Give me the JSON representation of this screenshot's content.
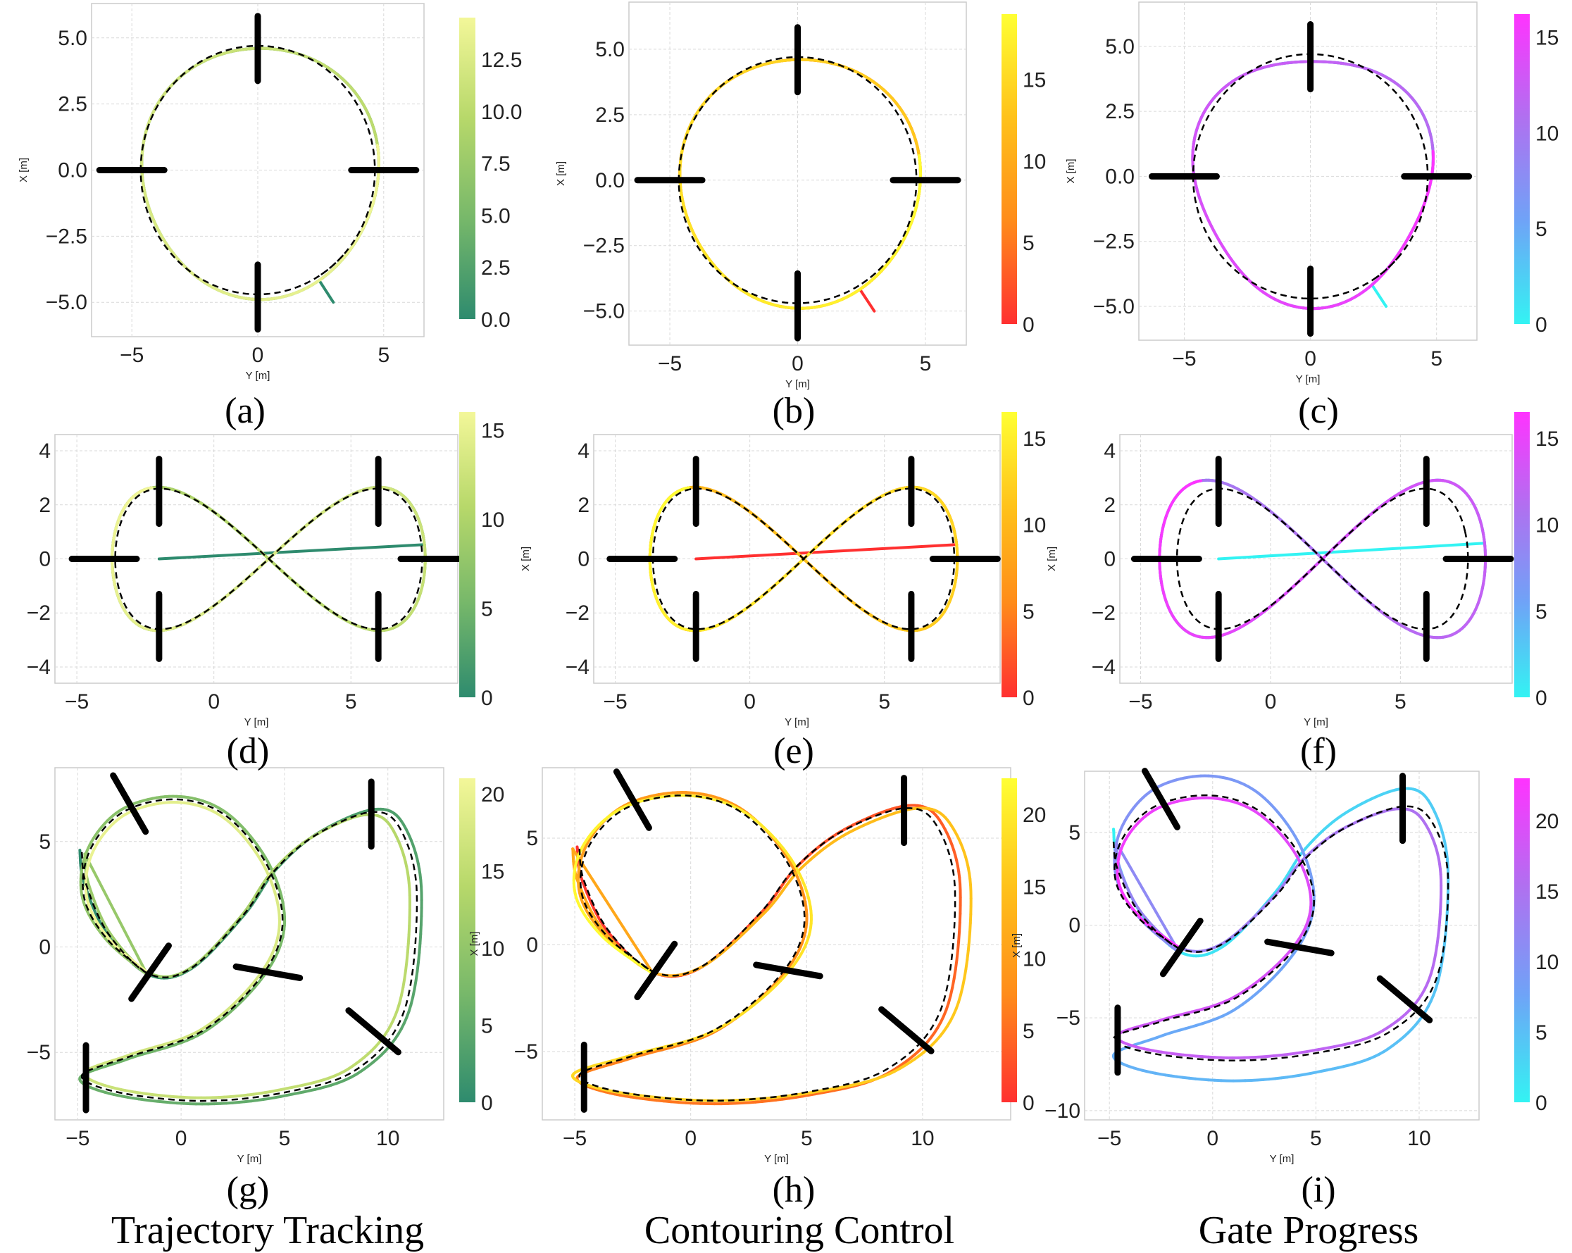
{
  "figure": {
    "column_titles": [
      "Trajectory Tracking",
      "Contouring Control",
      "Gate Progress"
    ],
    "panel_labels": [
      "(a)",
      "(b)",
      "(c)",
      "(d)",
      "(e)",
      "(f)",
      "(g)",
      "(h)",
      "(i)"
    ],
    "colormaps": {
      "summer": [
        "#2e8b6e",
        "#77b86a",
        "#b7d86a",
        "#f3f799"
      ],
      "autumn": [
        "#ff3030",
        "#ff8c1a",
        "#ffc21a",
        "#ffff33"
      ],
      "cool": [
        "#33f3f3",
        "#6fa3f7",
        "#b070f0",
        "#ff33ff"
      ]
    }
  },
  "chart_data": [
    {
      "id": "a",
      "type": "line",
      "scenario": "circle",
      "method": "Trajectory Tracking",
      "xlabel": "Y [m]",
      "ylabel": "X [m]",
      "xlim": [
        -6.6,
        6.6
      ],
      "ylim": [
        -6.3,
        6.3
      ],
      "xticks": [
        "−5",
        "0",
        "5"
      ],
      "yticks": [
        "−5.0",
        "−2.5",
        "0.0",
        "2.5",
        "5.0"
      ],
      "colormap": "summer",
      "colorbar_ticks": [
        "0.0",
        "2.5",
        "5.0",
        "7.5",
        "10.0",
        "12.5"
      ],
      "colorbar_range": [
        0,
        14.5
      ]
    },
    {
      "id": "b",
      "type": "line",
      "scenario": "circle",
      "method": "Contouring Control",
      "xlabel": "Y [m]",
      "ylabel": "X [m]",
      "xlim": [
        -6.6,
        6.6
      ],
      "ylim": [
        -6.3,
        6.8
      ],
      "xticks": [
        "−5",
        "0",
        "5"
      ],
      "yticks": [
        "−5.0",
        "−2.5",
        "0.0",
        "2.5",
        "5.0"
      ],
      "colormap": "autumn",
      "colorbar_ticks": [
        "0",
        "5",
        "10",
        "15"
      ],
      "colorbar_range": [
        0,
        19
      ]
    },
    {
      "id": "c",
      "type": "line",
      "scenario": "circle",
      "method": "Gate Progress",
      "xlabel": "Y [m]",
      "ylabel": "X [m]",
      "xlim": [
        -6.8,
        6.6
      ],
      "ylim": [
        -6.3,
        6.7
      ],
      "xticks": [
        "−5",
        "0",
        "5"
      ],
      "yticks": [
        "−5.0",
        "−2.5",
        "0.0",
        "2.5",
        "5.0"
      ],
      "colormap": "cool",
      "colorbar_ticks": [
        "0",
        "5",
        "10",
        "15"
      ],
      "colorbar_range": [
        0,
        16.2
      ]
    },
    {
      "id": "d",
      "type": "line",
      "scenario": "figure-eight",
      "method": "Trajectory Tracking",
      "xlabel": "Y [m]",
      "ylabel": "X [m]",
      "xlim": [
        -5.8,
        8.9
      ],
      "ylim": [
        -4.6,
        4.6
      ],
      "xticks": [
        "−5",
        "0",
        "5"
      ],
      "yticks": [
        "−4",
        "−2",
        "0",
        "2",
        "4"
      ],
      "colormap": "summer",
      "colorbar_ticks": [
        "0",
        "5",
        "10",
        "15"
      ],
      "colorbar_range": [
        0,
        16
      ]
    },
    {
      "id": "e",
      "type": "line",
      "scenario": "figure-eight",
      "method": "Contouring Control",
      "xlabel": "Y [m]",
      "ylabel": "X [m]",
      "xlim": [
        -5.8,
        9.3
      ],
      "ylim": [
        -4.6,
        4.6
      ],
      "xticks": [
        "−5",
        "0",
        "5"
      ],
      "yticks": [
        "−4",
        "−2",
        "0",
        "2",
        "4"
      ],
      "colormap": "autumn",
      "colorbar_ticks": [
        "0",
        "5",
        "10",
        "15"
      ],
      "colorbar_range": [
        0,
        16.5
      ]
    },
    {
      "id": "f",
      "type": "line",
      "scenario": "figure-eight",
      "method": "Gate Progress",
      "xlabel": "Y [m]",
      "ylabel": "X [m]",
      "xlim": [
        -5.8,
        9.3
      ],
      "ylim": [
        -4.6,
        4.6
      ],
      "xticks": [
        "−5",
        "0",
        "5"
      ],
      "yticks": [
        "−4",
        "−2",
        "0",
        "2",
        "4"
      ],
      "colormap": "cool",
      "colorbar_ticks": [
        "0",
        "5",
        "10",
        "15"
      ],
      "colorbar_range": [
        0,
        16.5
      ]
    },
    {
      "id": "g",
      "type": "line",
      "scenario": "race track",
      "method": "Trajectory Tracking",
      "xlabel": "Y [m]",
      "ylabel": "X [m]",
      "xlim": [
        -6.1,
        12.7
      ],
      "ylim": [
        -8.2,
        8.5
      ],
      "xticks": [
        "−5",
        "0",
        "5",
        "10"
      ],
      "yticks": [
        "−5",
        "0",
        "5"
      ],
      "colormap": "summer",
      "colorbar_ticks": [
        "0",
        "5",
        "10",
        "15",
        "20"
      ],
      "colorbar_range": [
        0,
        21
      ]
    },
    {
      "id": "h",
      "type": "line",
      "scenario": "race track",
      "method": "Contouring Control",
      "xlabel": "Y [m]",
      "ylabel": "X [m]",
      "xlim": [
        -6.4,
        13.8
      ],
      "ylim": [
        -8.2,
        8.3
      ],
      "xticks": [
        "−5",
        "0",
        "5",
        "10"
      ],
      "yticks": [
        "−5",
        "0",
        "5"
      ],
      "colormap": "autumn",
      "colorbar_ticks": [
        "0",
        "5",
        "10",
        "15",
        "20"
      ],
      "colorbar_range": [
        0,
        22.5
      ]
    },
    {
      "id": "i",
      "type": "line",
      "scenario": "race track",
      "method": "Gate Progress",
      "xlabel": "Y [m]",
      "ylabel": "X [m]",
      "xlim": [
        -6.2,
        12.9
      ],
      "ylim": [
        -10.5,
        8.3
      ],
      "xticks": [
        "−5",
        "0",
        "5",
        "10"
      ],
      "yticks": [
        "−10",
        "−5",
        "0",
        "5"
      ],
      "colormap": "cool",
      "colorbar_ticks": [
        "0",
        "5",
        "10",
        "15",
        "20"
      ],
      "colorbar_range": [
        0,
        23
      ]
    }
  ]
}
